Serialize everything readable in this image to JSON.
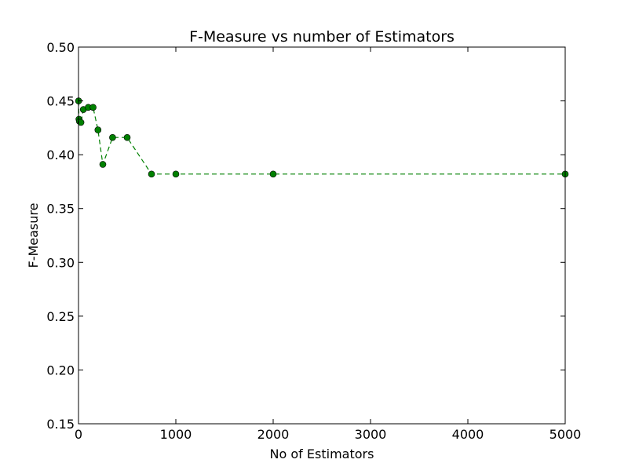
{
  "chart_data": {
    "type": "line",
    "title": "F-Measure vs number of Estimators",
    "xlabel": "No of Estimators",
    "ylabel": "F-Measure",
    "xlim": [
      0,
      5000
    ],
    "ylim": [
      0.15,
      0.5
    ],
    "xticks": [
      0,
      1000,
      2000,
      3000,
      4000,
      5000
    ],
    "xtick_labels": [
      "0",
      "1000",
      "2000",
      "3000",
      "4000",
      "5000"
    ],
    "yticks": [
      0.15,
      0.2,
      0.25,
      0.3,
      0.35,
      0.4,
      0.45,
      0.5
    ],
    "ytick_labels": [
      "0.15",
      "0.20",
      "0.25",
      "0.30",
      "0.35",
      "0.40",
      "0.45",
      "0.50"
    ],
    "grid": false,
    "line_style": "dashed",
    "marker": "circle",
    "color": "#008000",
    "series": [
      {
        "x": [
          1,
          5,
          10,
          25,
          50,
          100,
          150,
          200,
          250,
          350,
          500,
          750,
          1000,
          2000,
          5000
        ],
        "y": [
          0.45,
          0.433,
          0.431,
          0.43,
          0.442,
          0.444,
          0.444,
          0.423,
          0.391,
          0.416,
          0.416,
          0.382,
          0.382,
          0.382,
          0.382
        ]
      }
    ]
  }
}
